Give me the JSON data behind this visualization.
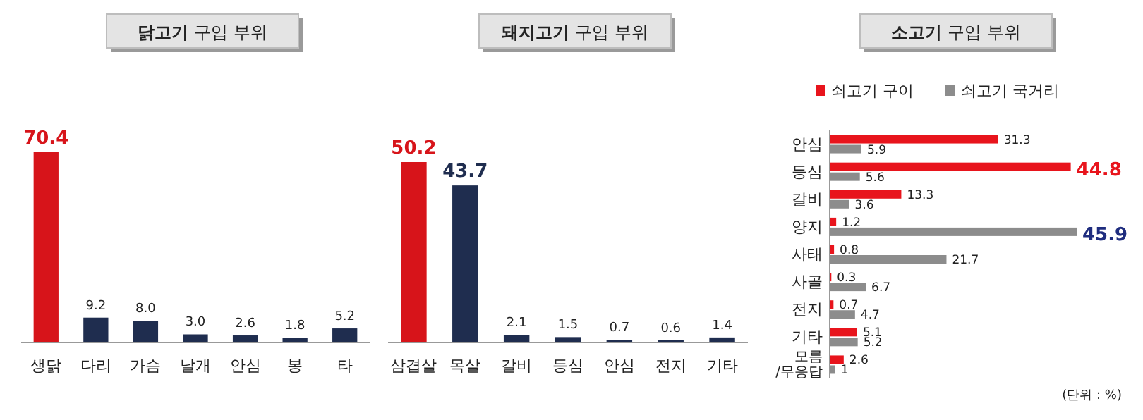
{
  "chart_data": [
    {
      "type": "bar",
      "title": "**닭고기** 구입 부위",
      "categories": [
        "생닭",
        "다리",
        "가슴",
        "날개",
        "안심",
        "봉",
        "타"
      ],
      "values": [
        70.4,
        9.2,
        8.0,
        3.0,
        2.6,
        1.8,
        5.2
      ],
      "value_labels": [
        "70.4",
        "9.2",
        "8.0",
        "3.0",
        "2.6",
        "1.8",
        "5.2"
      ],
      "colors": [
        "#d7141a",
        "#1f2d4f",
        "#1f2d4f",
        "#1f2d4f",
        "#1f2d4f",
        "#1f2d4f",
        "#1f2d4f"
      ]
    },
    {
      "type": "bar",
      "title": "**돼지고기** 구입 부위",
      "categories": [
        "삼겹살",
        "목살",
        "갈비",
        "등심",
        "안심",
        "전지",
        "기타"
      ],
      "values": [
        50.2,
        43.7,
        2.1,
        1.5,
        0.7,
        0.6,
        1.4
      ],
      "value_labels": [
        "50.2",
        "43.7",
        "2.1",
        "1.5",
        "0.7",
        "0.6",
        "1.4"
      ],
      "colors": [
        "#d7141a",
        "#1f2d4f",
        "#1f2d4f",
        "#1f2d4f",
        "#1f2d4f",
        "#1f2d4f",
        "#1f2d4f"
      ]
    },
    {
      "type": "bar",
      "orientation": "horizontal",
      "title": "**소고기** 구입 부위",
      "categories": [
        "안심",
        "등심",
        "갈비",
        "양지",
        "사태",
        "사골",
        "전지",
        "기타",
        "모름/무응답"
      ],
      "series": [
        {
          "name": "쇠고기 구이",
          "color": "#e8141c",
          "values": [
            31.3,
            44.8,
            13.3,
            1.2,
            0.8,
            0.3,
            0.7,
            5.1,
            2.6
          ],
          "value_labels": [
            "31.3",
            "44.8",
            "13.3",
            "1.2",
            "0.8",
            "0.3",
            "0.7",
            "5.1",
            "2.6"
          ]
        },
        {
          "name": "쇠고기 국거리",
          "color": "#8c8c8c",
          "values": [
            5.9,
            5.6,
            3.6,
            45.9,
            21.7,
            6.7,
            4.7,
            5.2,
            1
          ],
          "value_labels": [
            "5.9",
            "5.6",
            "3.6",
            "45.9",
            "21.7",
            "6.7",
            "4.7",
            "5.2",
            "1"
          ]
        }
      ],
      "legend": "top left",
      "annotations": [
        "(단위 : %)"
      ]
    }
  ]
}
